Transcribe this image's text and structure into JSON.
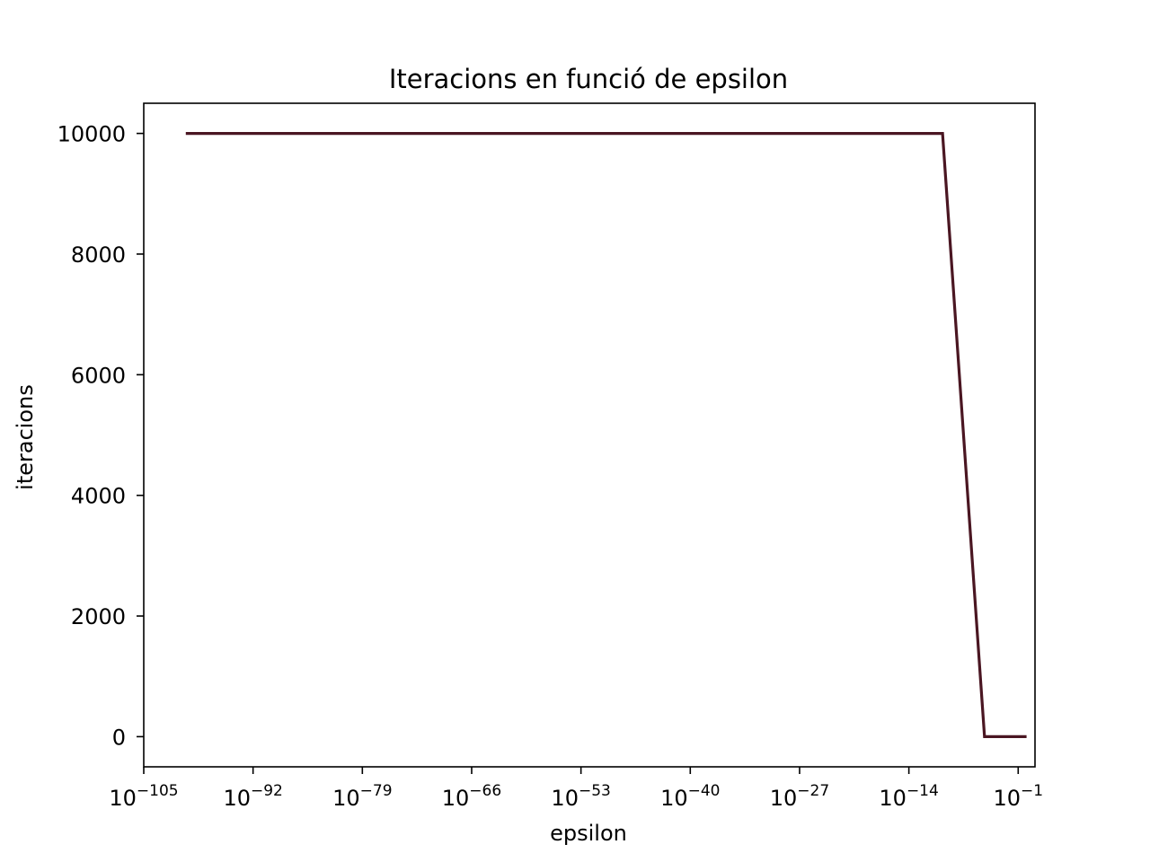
{
  "chart_data": {
    "type": "line",
    "title": "Iteracions en funció de epsilon",
    "xlabel": "epsilon",
    "ylabel": "iteracions",
    "xscale": "log",
    "xlim": [
      1e-105,
      10
    ],
    "ylim": [
      -500,
      10500
    ],
    "grid": false,
    "x_ticks": [
      {
        "base": "10",
        "exp": "−105",
        "value": 1e-105
      },
      {
        "base": "10",
        "exp": "−92",
        "value": 1e-92
      },
      {
        "base": "10",
        "exp": "−79",
        "value": 1e-79
      },
      {
        "base": "10",
        "exp": "−66",
        "value": 1e-66
      },
      {
        "base": "10",
        "exp": "−53",
        "value": 1e-53
      },
      {
        "base": "10",
        "exp": "−40",
        "value": 1e-40
      },
      {
        "base": "10",
        "exp": "−27",
        "value": 1e-27
      },
      {
        "base": "10",
        "exp": "−14",
        "value": 1e-14
      },
      {
        "base": "10",
        "exp": "−1",
        "value": 0.1
      }
    ],
    "y_ticks": [
      0,
      2000,
      4000,
      6000,
      8000,
      10000
    ],
    "series": [
      {
        "color": "#4a1622",
        "x": [
          1e-100,
          1e-10,
          1e-05,
          1
        ],
        "y": [
          10000,
          10000,
          0,
          0
        ]
      }
    ]
  }
}
